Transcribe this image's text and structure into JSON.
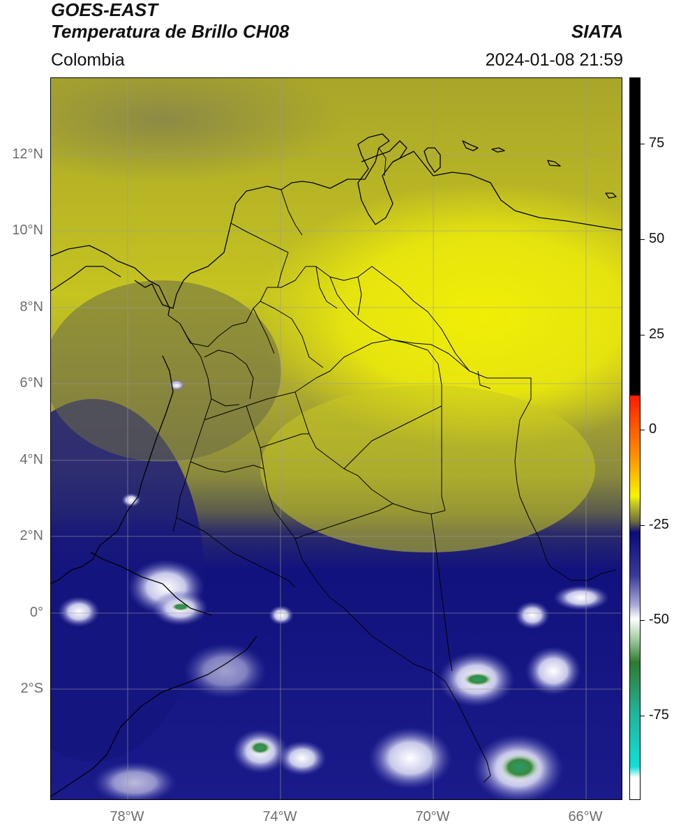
{
  "header": {
    "title_line1": "GOES-EAST",
    "title_line2": "Temperatura de Brillo CH08",
    "brand": "SIATA",
    "region": "Colombia",
    "datetime": "2024-01-08 21:59"
  },
  "axes": {
    "lat_labels": [
      "12°N",
      "10°N",
      "8°N",
      "6°N",
      "4°N",
      "2°N",
      "0°",
      "2°S"
    ],
    "lon_labels": [
      "78°W",
      "74°W",
      "70°W",
      "66°W"
    ],
    "lon_range": [
      "80°W",
      "65°W"
    ],
    "lat_range": [
      "4.6°S",
      "14°N"
    ],
    "grid": true
  },
  "colorbar": {
    "tick_labels": [
      "75",
      "50",
      "25",
      "0",
      "-25",
      "-50",
      "-75"
    ],
    "colors": {
      "black": "#000000",
      "red": "#ff1a00",
      "yellow": "#f5f500",
      "olive": "#6c6c3c",
      "navy": "#0b0b7a",
      "lavender": "#a8a8d8",
      "white": "#ffffff",
      "green": "#2f7a2f",
      "cyan": "#10e0d8"
    }
  },
  "colors": {
    "land_border": "#000000",
    "grid": "#9a9a9a"
  }
}
